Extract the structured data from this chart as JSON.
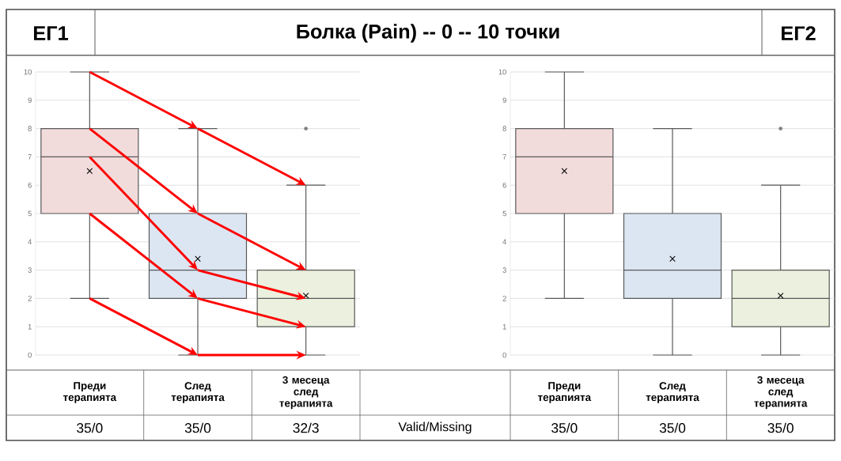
{
  "chart_data": [
    {
      "type": "box",
      "title": "ЕГ1",
      "subtitle": "Болка (Pain) -- 0 -- 10 точки",
      "categories": [
        "Преди терапията",
        "След терапията",
        "3 месеца след терапията"
      ],
      "boxes": [
        {
          "low": 2,
          "q1": 5,
          "median": 7,
          "q3": 8,
          "high": 10,
          "mean": 6.5
        },
        {
          "low": 0,
          "q1": 2,
          "median": 3,
          "q3": 5,
          "high": 8,
          "mean": 3.4
        },
        {
          "low": 0,
          "q1": 1,
          "median": 2,
          "q3": 3,
          "high": 6,
          "mean": 2.1,
          "outliers": [
            8
          ]
        }
      ],
      "colors": [
        "#f2dcdb",
        "#dce6f2",
        "#ebf1de"
      ],
      "ylim": [
        0,
        10
      ],
      "yticks": [
        0,
        1,
        2,
        3,
        4,
        5,
        6,
        7,
        8,
        9,
        10
      ],
      "grid": "y",
      "annotations": [
        "35/0",
        "35/0",
        "32/3",
        "Valid/Missing"
      ]
    },
    {
      "type": "box",
      "title": "ЕГ2",
      "categories": [
        "Преди терапията",
        "След терапията",
        "3 месеца след терапията"
      ],
      "boxes": [
        {
          "low": 2,
          "q1": 5,
          "median": 7,
          "q3": 8,
          "high": 10,
          "mean": 6.5
        },
        {
          "low": 0,
          "q1": 2,
          "median": 3,
          "q3": 5,
          "high": 8,
          "mean": 3.4
        },
        {
          "low": 0,
          "q1": 1,
          "median": 2,
          "q3": 3,
          "high": 6,
          "mean": 2.1,
          "outliers": [
            8
          ]
        }
      ],
      "colors": [
        "#f2dcdb",
        "#dce6f2",
        "#ebf1de"
      ],
      "ylim": [
        0,
        10
      ],
      "yticks": [
        0,
        1,
        2,
        3,
        4,
        5,
        6,
        7,
        8,
        9,
        10
      ],
      "grid": "y",
      "annotations": [
        "35/0",
        "35/0",
        "35/0"
      ]
    }
  ]
}
